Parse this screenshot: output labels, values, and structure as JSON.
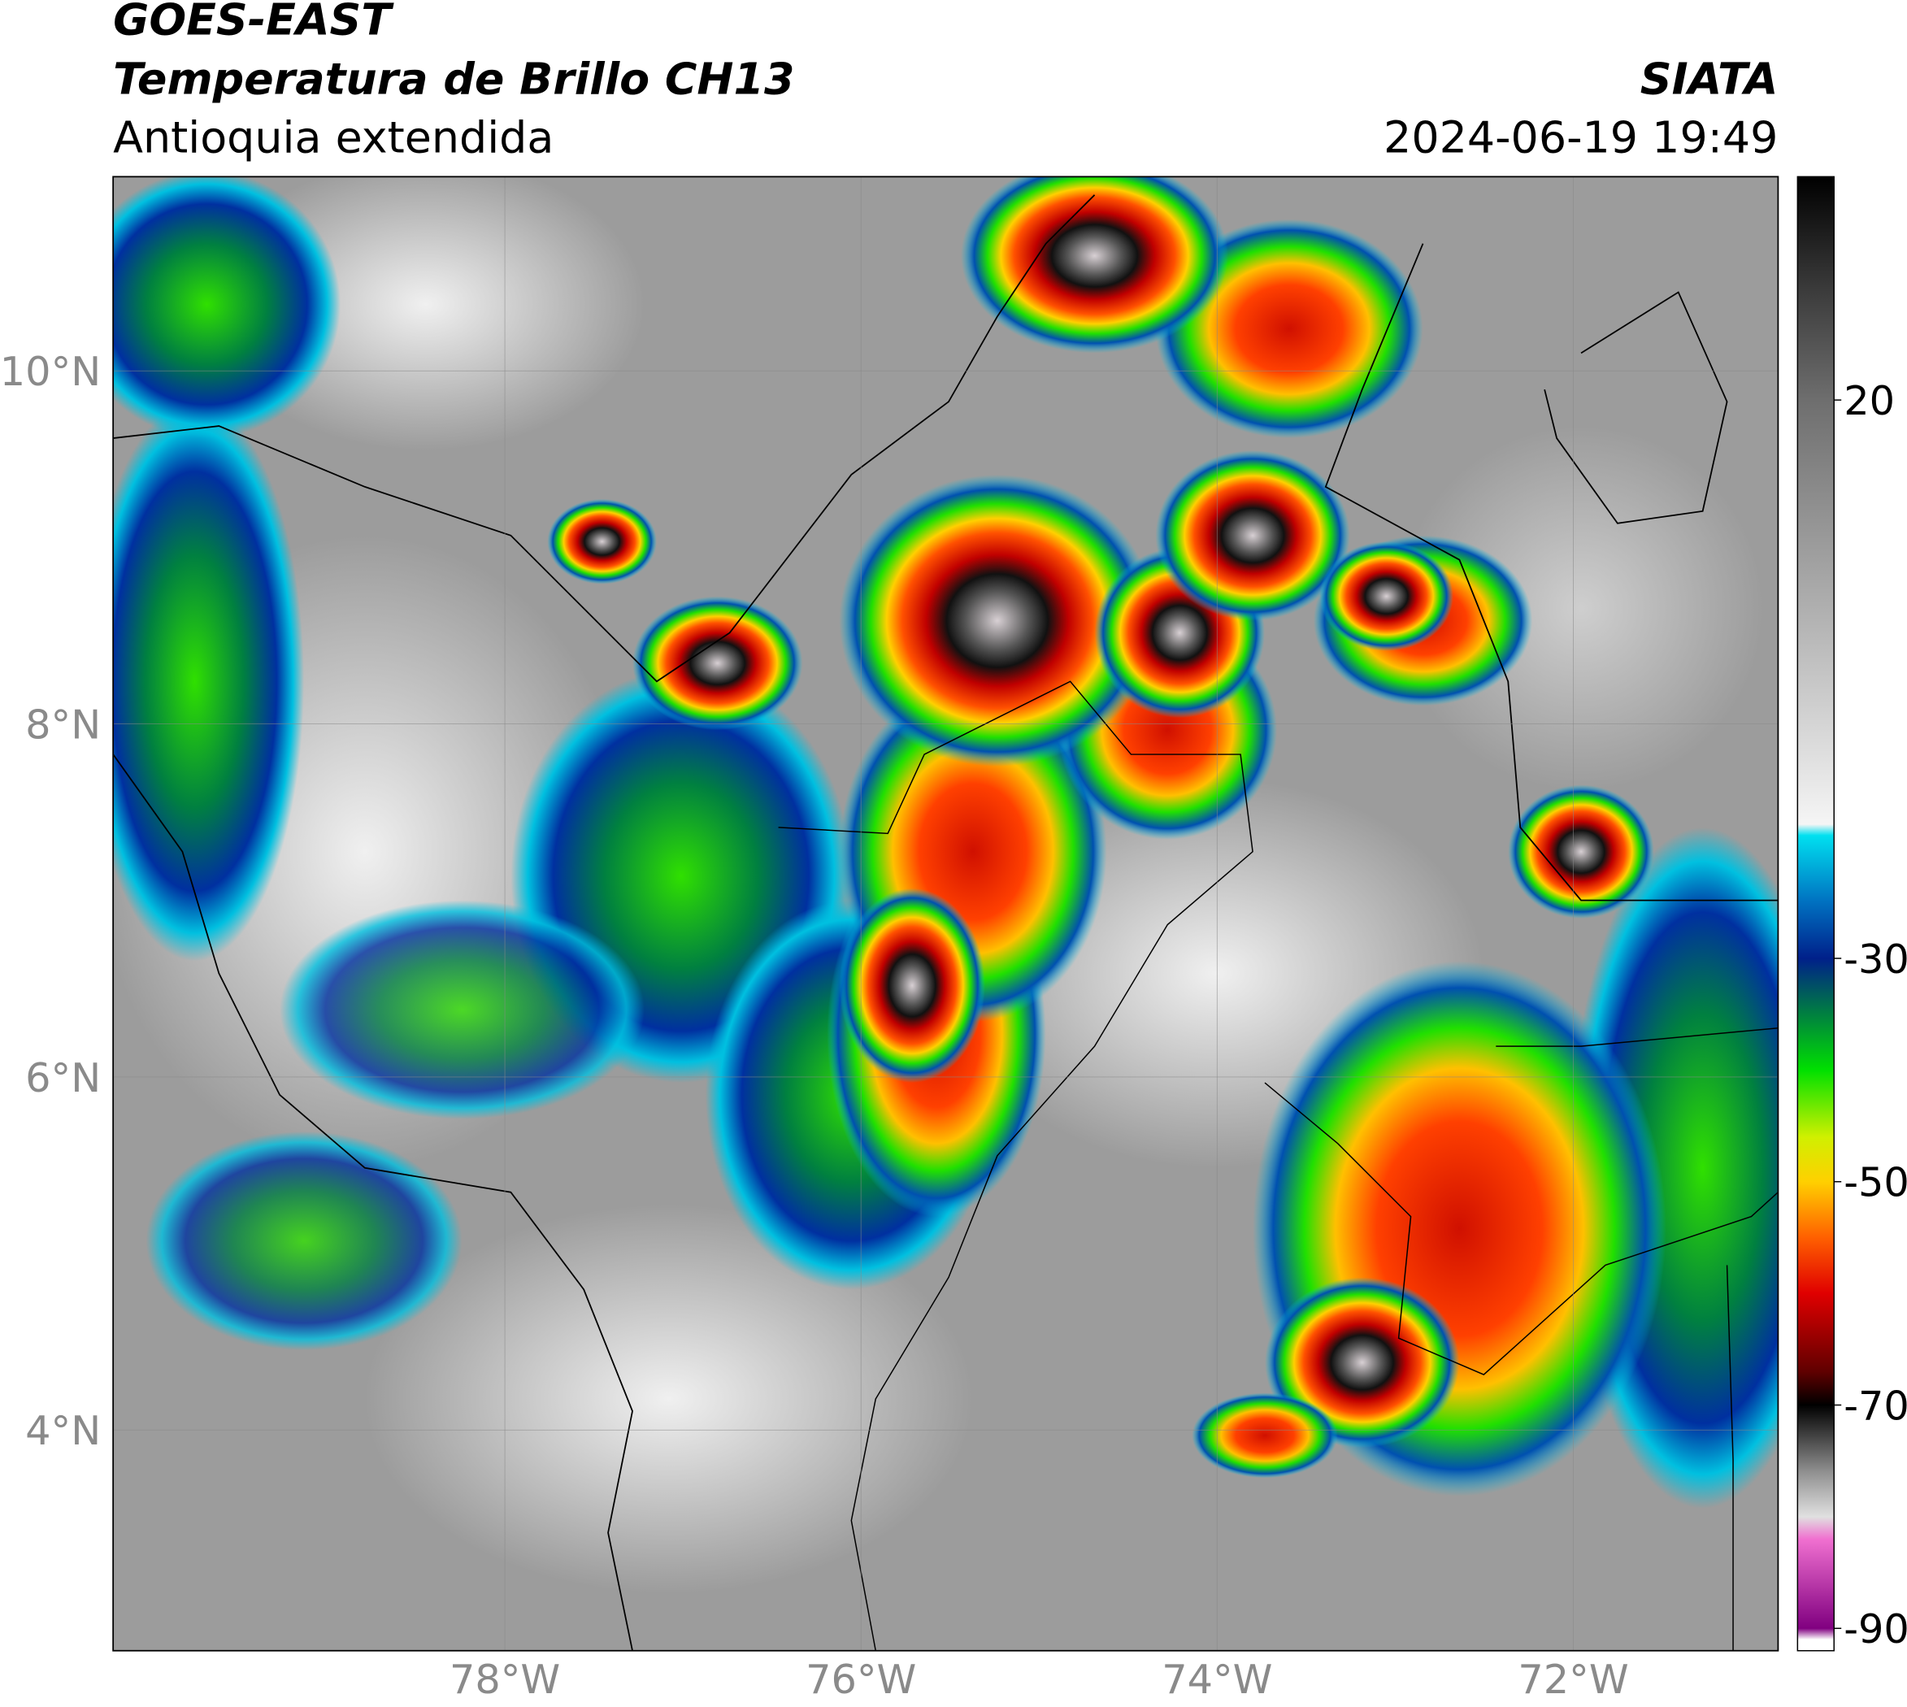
{
  "header": {
    "title": "GOES-EAST",
    "subtitle": "Temperatura de Brillo CH13",
    "region": "Antioquia extendida",
    "source": "SIATA",
    "datetime": "2024-06-19 19:49"
  },
  "map": {
    "xlim": [
      -80.2,
      -70.85
    ],
    "ylim": [
      2.75,
      11.1
    ],
    "xticks": [
      {
        "value": -78,
        "label": "78°W"
      },
      {
        "value": -76,
        "label": "76°W"
      },
      {
        "value": -74,
        "label": "74°W"
      },
      {
        "value": -72,
        "label": "72°W"
      }
    ],
    "yticks": [
      {
        "value": 10,
        "label": "10°N"
      },
      {
        "value": 8,
        "label": "8°N"
      },
      {
        "value": 6,
        "label": "6°N"
      },
      {
        "value": 4,
        "label": "4°N"
      }
    ]
  },
  "colorbar": {
    "lim": [
      -92,
      40
    ],
    "ticks": [
      20,
      -30,
      -50,
      -70,
      -90
    ],
    "stops": [
      {
        "value": 40,
        "color": "#000000"
      },
      {
        "value": 30,
        "color": "#3a3a3a"
      },
      {
        "value": 20,
        "color": "#6e6e6e"
      },
      {
        "value": 0,
        "color": "#b4b4b4"
      },
      {
        "value": -18,
        "color": "#f5f5f5"
      },
      {
        "value": -19,
        "color": "#00e0f0"
      },
      {
        "value": -25,
        "color": "#0070c0"
      },
      {
        "value": -30,
        "color": "#00208a"
      },
      {
        "value": -35,
        "color": "#008040"
      },
      {
        "value": -40,
        "color": "#00e000"
      },
      {
        "value": -46,
        "color": "#d0f000"
      },
      {
        "value": -50,
        "color": "#ffd000"
      },
      {
        "value": -55,
        "color": "#ff6000"
      },
      {
        "value": -60,
        "color": "#e00000"
      },
      {
        "value": -67,
        "color": "#600000"
      },
      {
        "value": -70,
        "color": "#000000"
      },
      {
        "value": -76,
        "color": "#909090"
      },
      {
        "value": -80,
        "color": "#e0e0e0"
      },
      {
        "value": -82,
        "color": "#f070d0"
      },
      {
        "value": -90,
        "color": "#800080"
      },
      {
        "value": -91,
        "color": "#ffffff"
      },
      {
        "value": -92,
        "color": "#ffffff"
      }
    ]
  }
}
